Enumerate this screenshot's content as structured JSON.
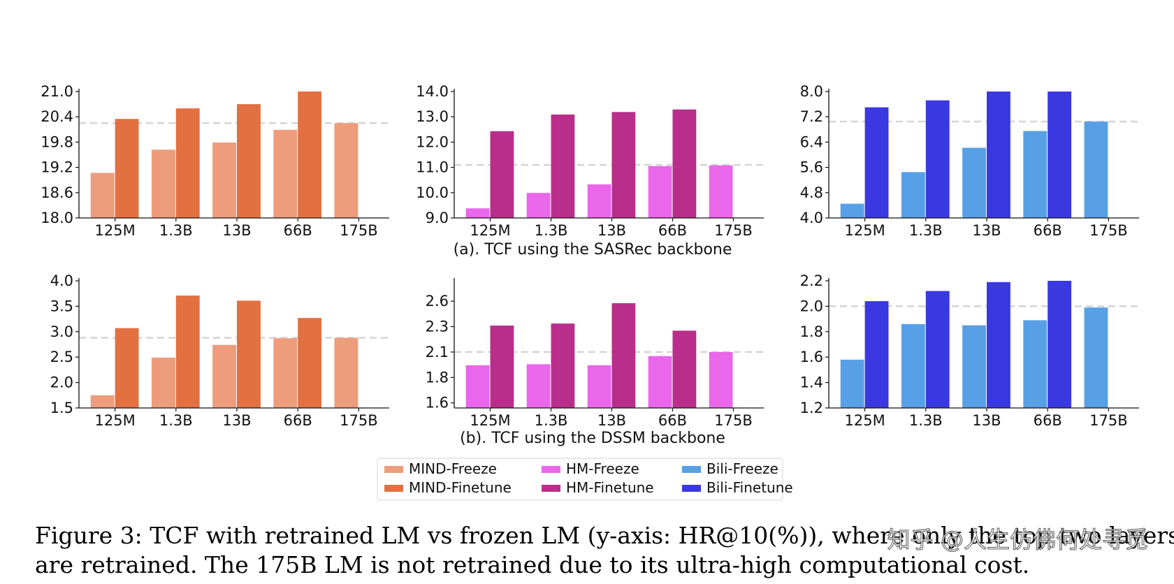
{
  "figure": {
    "subcaption_a": "(a). TCF using the SASRec backbone",
    "subcaption_b": "(b). TCF using the DSSM backbone",
    "caption_line1": "Figure 3: TCF with retrained LM vs frozen LM (y-axis: HR@10(%)), where only the top two layers",
    "caption_line2": "are retrained. The 175B LM is not retrained due to its ultra-high computational cost.",
    "watermark": "知乎 @人生仿佛何处寻觅"
  },
  "colors": {
    "MIND-Freeze": "#ED9C7C",
    "MIND-Finetune": "#E37041",
    "HM-Freeze": "#EA66EA",
    "HM-Finetune": "#B82E8A",
    "Bili-Freeze": "#58A0E6",
    "Bili-Finetune": "#3A38E0",
    "reference_line": "#d4d4d4"
  },
  "legend": [
    {
      "label": "MIND-Freeze",
      "color": "#ED9C7C"
    },
    {
      "label": "MIND-Finetune",
      "color": "#E37041"
    },
    {
      "label": "HM-Freeze",
      "color": "#EA66EA"
    },
    {
      "label": "HM-Finetune",
      "color": "#B82E8A"
    },
    {
      "label": "Bili-Freeze",
      "color": "#58A0E6"
    },
    {
      "label": "Bili-Finetune",
      "color": "#3A38E0"
    }
  ],
  "chart_data": [
    {
      "id": "a-mind",
      "type": "bar",
      "group": "a",
      "categories": [
        "125M",
        "1.3B",
        "13B",
        "66B",
        "175B"
      ],
      "ylim": [
        18.0,
        21.0
      ],
      "yticks": [
        "18.0",
        "18.6",
        "19.2",
        "19.8",
        "20.4",
        "21.0"
      ],
      "reference": 20.25,
      "series": [
        {
          "name": "MIND-Freeze",
          "values": [
            19.07,
            19.62,
            19.79,
            20.09,
            20.25
          ]
        },
        {
          "name": "MIND-Finetune",
          "values": [
            20.35,
            20.6,
            20.7,
            21.0,
            null
          ]
        }
      ]
    },
    {
      "id": "a-hm",
      "type": "bar",
      "group": "a",
      "categories": [
        "125M",
        "1.3B",
        "13B",
        "66B",
        "175B"
      ],
      "ylim": [
        9.0,
        14.0
      ],
      "yticks": [
        "9.0",
        "10.0",
        "11.0",
        "12.0",
        "13.0",
        "14.0"
      ],
      "reference": 11.1,
      "series": [
        {
          "name": "HM-Freeze",
          "values": [
            9.38,
            9.99,
            10.33,
            11.05,
            11.08
          ]
        },
        {
          "name": "HM-Finetune",
          "values": [
            12.43,
            13.09,
            13.19,
            13.29,
            null
          ]
        }
      ]
    },
    {
      "id": "a-bili",
      "type": "bar",
      "group": "a",
      "categories": [
        "125M",
        "1.3B",
        "13B",
        "66B",
        "175B"
      ],
      "ylim": [
        4.0,
        8.0
      ],
      "yticks": [
        "4.0",
        "4.8",
        "5.6",
        "6.4",
        "7.2",
        "8.0"
      ],
      "reference": 7.05,
      "series": [
        {
          "name": "Bili-Freeze",
          "values": [
            4.45,
            5.45,
            6.22,
            6.75,
            7.05
          ]
        },
        {
          "name": "Bili-Finetune",
          "values": [
            7.5,
            7.72,
            8.0,
            8.0,
            null
          ]
        }
      ]
    },
    {
      "id": "b-mind",
      "type": "bar",
      "group": "b",
      "categories": [
        "125M",
        "1.3B",
        "13B",
        "66B",
        "175B"
      ],
      "ylim": [
        1.5,
        4.0
      ],
      "yticks": [
        "1.5",
        "2.0",
        "2.5",
        "3.0",
        "3.5",
        "4.0"
      ],
      "reference": 2.88,
      "series": [
        {
          "name": "MIND-Freeze",
          "values": [
            1.75,
            2.49,
            2.74,
            2.87,
            2.88
          ]
        },
        {
          "name": "MIND-Finetune",
          "values": [
            3.07,
            3.71,
            3.61,
            3.27,
            null
          ]
        }
      ]
    },
    {
      "id": "b-hm",
      "type": "bar",
      "group": "b",
      "categories": [
        "125M",
        "1.3B",
        "13B",
        "66B",
        "175B"
      ],
      "ylim": [
        1.55,
        2.8
      ],
      "yticks": [
        "1.6",
        "1.8",
        "2.1",
        "2.3",
        "2.6"
      ],
      "ytickvals": [
        1.6,
        1.85,
        2.1,
        2.35,
        2.6
      ],
      "reference": 2.1,
      "series": [
        {
          "name": "HM-Freeze",
          "values": [
            1.97,
            1.98,
            1.97,
            2.06,
            2.1
          ]
        },
        {
          "name": "HM-Finetune",
          "values": [
            2.36,
            2.38,
            2.58,
            2.31,
            null
          ]
        }
      ]
    },
    {
      "id": "b-bili",
      "type": "bar",
      "group": "b",
      "categories": [
        "125M",
        "1.3B",
        "13B",
        "66B",
        "175B"
      ],
      "ylim": [
        1.2,
        2.2
      ],
      "yticks": [
        "1.2",
        "1.4",
        "1.6",
        "1.8",
        "2.0",
        "2.2"
      ],
      "reference": 2.0,
      "series": [
        {
          "name": "Bili-Freeze",
          "values": [
            1.58,
            1.86,
            1.85,
            1.89,
            1.99
          ]
        },
        {
          "name": "Bili-Finetune",
          "values": [
            2.04,
            2.12,
            2.19,
            2.2,
            null
          ]
        }
      ]
    }
  ]
}
